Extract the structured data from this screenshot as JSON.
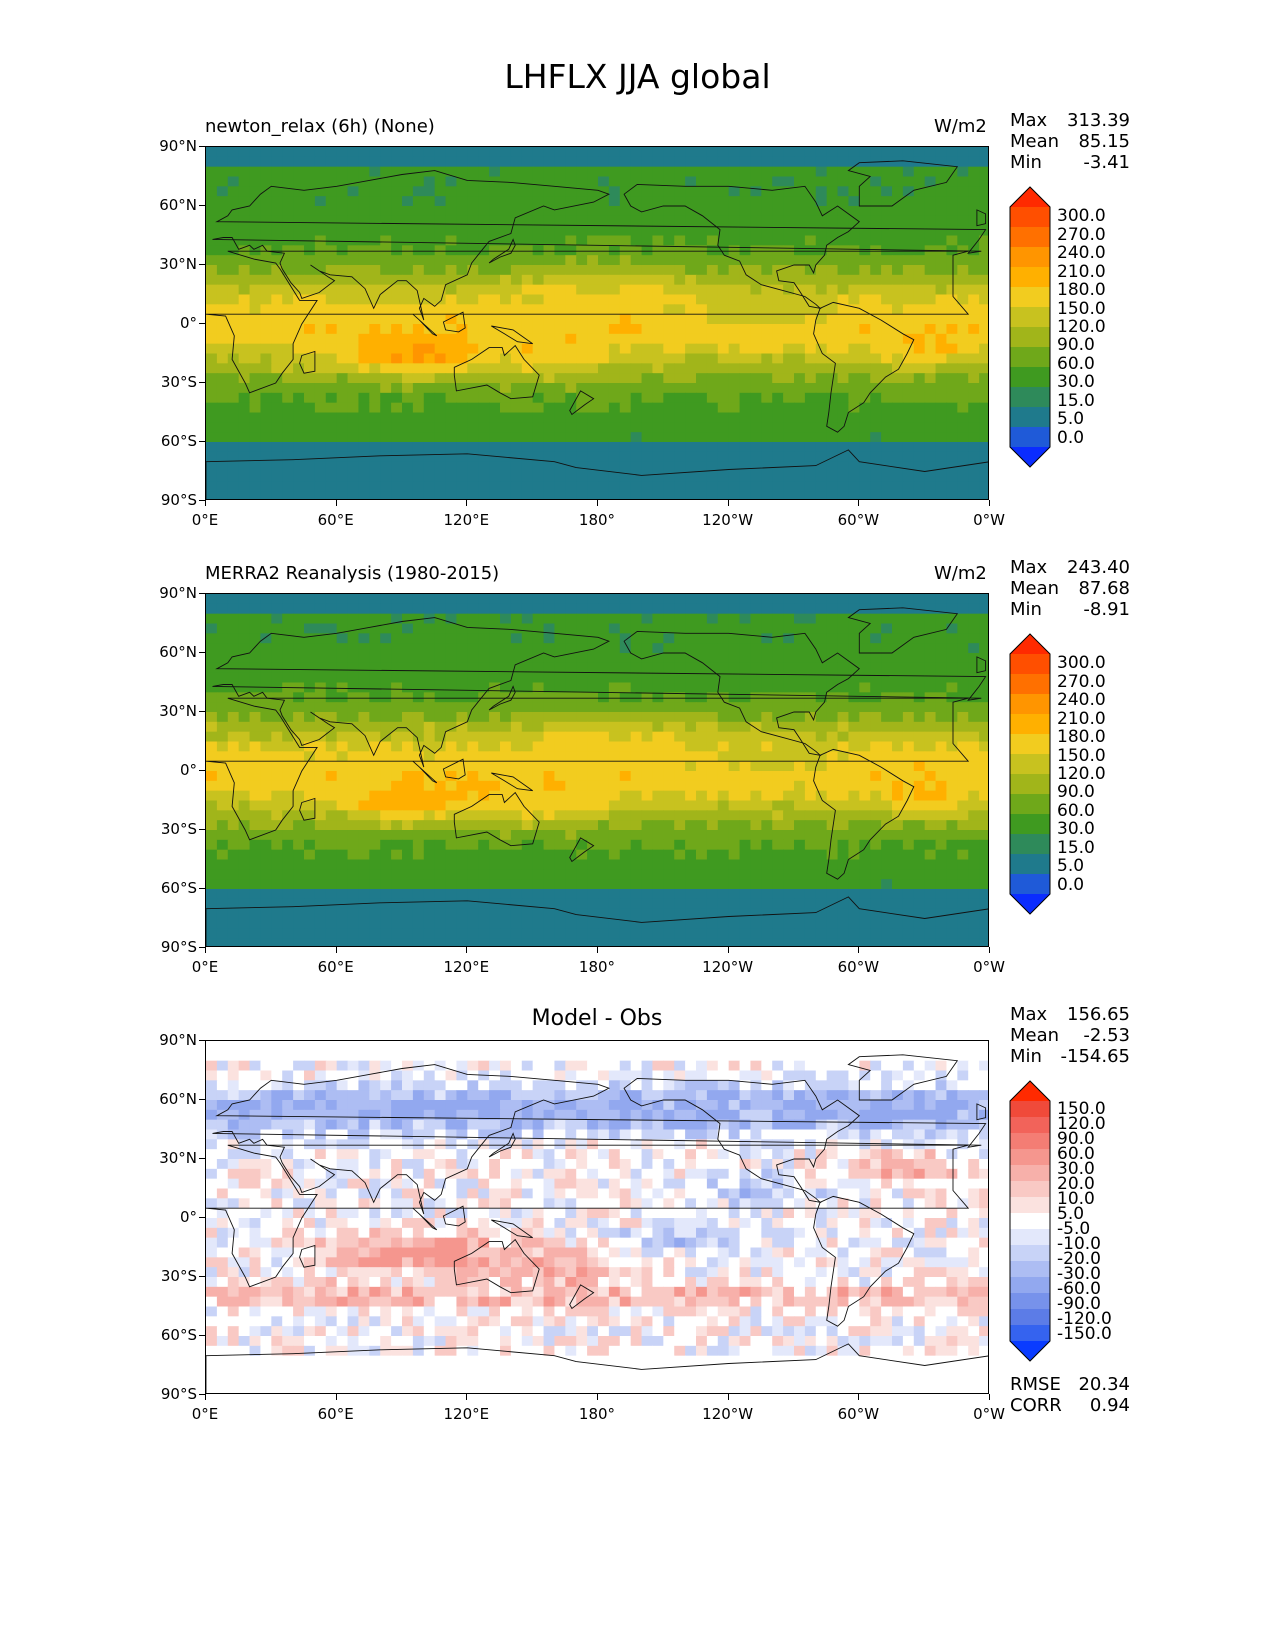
{
  "figure": {
    "title": "LHFLX JJA global"
  },
  "axes": {
    "lat_ticks": [
      "90°N",
      "60°N",
      "30°N",
      "0°",
      "30°S",
      "60°S",
      "90°S"
    ],
    "lon_ticks": [
      "0°E",
      "60°E",
      "120°E",
      "180°",
      "120°W",
      "60°W",
      "0°W"
    ]
  },
  "chart_data": [
    {
      "type": "heatmap",
      "title": "newton_relax (6h) (None)",
      "units": "W/m2",
      "stats": {
        "max_label": "Max",
        "max": "313.39",
        "mean_label": "Mean",
        "mean": "85.15",
        "min_label": "Min",
        "min": "-3.41"
      },
      "colorbar": {
        "levels": [
          "300.0",
          "270.0",
          "240.0",
          "210.0",
          "180.0",
          "150.0",
          "120.0",
          "90.0",
          "60.0",
          "30.0",
          "15.0",
          "5.0",
          "0.0"
        ],
        "colors": [
          "#ff2a00",
          "#ff4f00",
          "#ff7000",
          "#ff9500",
          "#ffb000",
          "#f2cc1f",
          "#c8c21f",
          "#a1b51a",
          "#6fa81a",
          "#3f9a20",
          "#2e8a5a",
          "#1f7a8c",
          "#1f5ad8",
          "#0a2cff"
        ]
      },
      "xlim": [
        0,
        360
      ],
      "ylim": [
        -90,
        90
      ]
    },
    {
      "type": "heatmap",
      "title": "MERRA2 Reanalysis (1980-2015)",
      "units": "W/m2",
      "stats": {
        "max_label": "Max",
        "max": "243.40",
        "mean_label": "Mean",
        "mean": "87.68",
        "min_label": "Min",
        "min": "-8.91"
      },
      "colorbar": {
        "levels": [
          "300.0",
          "270.0",
          "240.0",
          "210.0",
          "180.0",
          "150.0",
          "120.0",
          "90.0",
          "60.0",
          "30.0",
          "15.0",
          "5.0",
          "0.0"
        ],
        "colors": [
          "#ff2a00",
          "#ff4f00",
          "#ff7000",
          "#ff9500",
          "#ffb000",
          "#f2cc1f",
          "#c8c21f",
          "#a1b51a",
          "#6fa81a",
          "#3f9a20",
          "#2e8a5a",
          "#1f7a8c",
          "#1f5ad8",
          "#0a2cff"
        ]
      },
      "xlim": [
        0,
        360
      ],
      "ylim": [
        -90,
        90
      ]
    },
    {
      "type": "heatmap",
      "title": "Model - Obs",
      "units": "",
      "stats": {
        "max_label": "Max",
        "max": "156.65",
        "mean_label": "Mean",
        "mean": "-2.53",
        "min_label": "Min",
        "min": "-154.65"
      },
      "metrics": {
        "rmse_label": "RMSE",
        "rmse": "20.34",
        "corr_label": "CORR",
        "corr": "0.94"
      },
      "colorbar": {
        "levels": [
          "150.0",
          "120.0",
          "90.0",
          "60.0",
          "30.0",
          "20.0",
          "10.0",
          "5.0",
          "-5.0",
          "-10.0",
          "-20.0",
          "-30.0",
          "-60.0",
          "-90.0",
          "-120.0",
          "-150.0"
        ],
        "colors": [
          "#ff2a00",
          "#f04a3a",
          "#f2635a",
          "#f47d74",
          "#f5968e",
          "#f7b0aa",
          "#f9c9c4",
          "#fbe2df",
          "#ffffff",
          "#e3e8fb",
          "#c8d3f7",
          "#adbdf3",
          "#92a8ef",
          "#7792eb",
          "#5c7ce7",
          "#3563ef",
          "#0a3cff"
        ]
      },
      "xlim": [
        0,
        360
      ],
      "ylim": [
        -90,
        90
      ]
    }
  ]
}
